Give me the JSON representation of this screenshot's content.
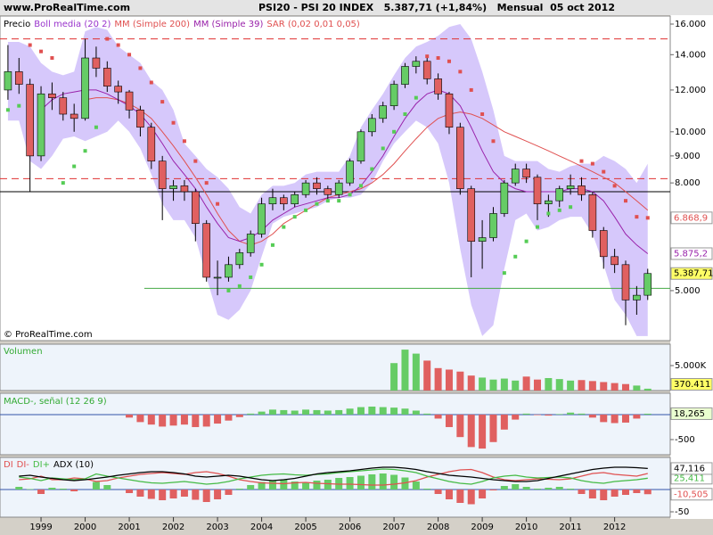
{
  "header": {
    "site": "www.ProRealTime.com",
    "title": "PSI20 - PSI 20 INDEX   5.387,71 (+1,84%)   Mensual  05 oct 2012"
  },
  "chart_data": [
    {
      "type": "candlestick",
      "log_scale": true,
      "price_name": "Precio",
      "copyright": "© ProRealTime.com",
      "xlim": [
        1998.07,
        2013.26
      ],
      "xticks": [
        1999,
        2000,
        2001,
        2002,
        2003,
        2004,
        2005,
        2006,
        2007,
        2008,
        2009,
        2010,
        2011,
        2012
      ],
      "ylim": [
        4020,
        16570
      ],
      "yticks": [
        {
          "value": 5000,
          "label": "5.000"
        },
        {
          "value": 8000,
          "label": "8.000"
        },
        {
          "value": 9000,
          "label": "9.000"
        },
        {
          "value": 10000,
          "label": "10.000"
        },
        {
          "value": 12000,
          "label": "12.000"
        },
        {
          "value": 14000,
          "label": "14.000"
        },
        {
          "value": 16000,
          "label": "16.000"
        }
      ],
      "x": [
        1998.25,
        1998.5,
        1998.75,
        1999,
        1999.25,
        1999.5,
        1999.75,
        2000,
        2000.25,
        2000.5,
        2000.75,
        2001,
        2001.25,
        2001.5,
        2001.75,
        2002,
        2002.25,
        2002.5,
        2002.75,
        2003,
        2003.25,
        2003.5,
        2003.75,
        2004,
        2004.25,
        2004.5,
        2004.75,
        2005,
        2005.25,
        2005.5,
        2005.75,
        2006,
        2006.25,
        2006.5,
        2006.75,
        2007,
        2007.25,
        2007.5,
        2007.75,
        2008,
        2008.25,
        2008.5,
        2008.75,
        2009,
        2009.25,
        2009.5,
        2009.75,
        2010,
        2010.25,
        2010.5,
        2010.75,
        2011,
        2011.25,
        2011.5,
        2011.75,
        2012,
        2012.25,
        2012.5,
        2012.75
      ],
      "open": [
        12000,
        13000,
        12300,
        9000,
        11800,
        11600,
        10800,
        10600,
        13800,
        13200,
        12200,
        11900,
        11000,
        10200,
        8800,
        7800,
        7900,
        7700,
        6700,
        5300,
        5300,
        5600,
        5900,
        6400,
        7300,
        7500,
        7300,
        7600,
        8000,
        7800,
        7600,
        8000,
        8800,
        10000,
        10600,
        11200,
        12300,
        13300,
        13600,
        12600,
        11800,
        10200,
        7800,
        6200,
        6300,
        7000,
        8000,
        8500,
        8200,
        7300,
        7400,
        7800,
        7900,
        7600,
        6500,
        5800,
        5600,
        4800,
        4900
      ],
      "high": [
        14600,
        13800,
        12600,
        12200,
        12400,
        11900,
        11300,
        15000,
        14500,
        13600,
        12500,
        12000,
        11200,
        10400,
        9000,
        8100,
        8100,
        7800,
        6800,
        5700,
        5800,
        6000,
        6500,
        7500,
        7800,
        7600,
        7700,
        8100,
        8200,
        7900,
        8100,
        8900,
        10100,
        10800,
        11400,
        12500,
        13500,
        13900,
        13800,
        12900,
        11900,
        10400,
        7900,
        6800,
        7200,
        8100,
        8700,
        8700,
        8300,
        7600,
        7900,
        8300,
        8200,
        7700,
        6600,
        6000,
        5700,
        5100,
        5500
      ],
      "low": [
        11500,
        11800,
        7700,
        8800,
        11000,
        10500,
        10000,
        10500,
        12700,
        11900,
        11300,
        10600,
        9800,
        8500,
        6800,
        7400,
        7400,
        6200,
        5200,
        4900,
        5200,
        5500,
        5800,
        6300,
        7100,
        7100,
        7200,
        7500,
        7600,
        7400,
        7500,
        7900,
        8700,
        9800,
        10400,
        11000,
        12100,
        12900,
        12300,
        11500,
        9900,
        7600,
        5300,
        5500,
        6200,
        6900,
        7900,
        8000,
        6800,
        6900,
        7200,
        7600,
        7400,
        6300,
        5500,
        5400,
        4300,
        4500,
        4800
      ],
      "close": [
        13000,
        12300,
        9000,
        11800,
        11600,
        10800,
        10600,
        13800,
        13200,
        12200,
        11900,
        11000,
        10200,
        8800,
        7800,
        7900,
        7700,
        6700,
        5300,
        5300,
        5600,
        5900,
        6400,
        7300,
        7500,
        7300,
        7600,
        8000,
        7800,
        7600,
        8000,
        8800,
        10000,
        10600,
        11200,
        12300,
        13300,
        13600,
        12600,
        11800,
        10200,
        7800,
        6200,
        6300,
        7000,
        8000,
        8500,
        8200,
        7300,
        7400,
        7800,
        7900,
        7600,
        6500,
        5800,
        5600,
        4800,
        4900,
        5387.71
      ],
      "last_label": "5.387,71",
      "last_label_background": "#ffff66",
      "up_color": "#66cc66",
      "down_color": "#e06060",
      "series": [
        {
          "name": "Boll media (20 2)",
          "color": "#9933cc",
          "fill": "#d6c8fb",
          "upper": [
            14800,
            14800,
            14500,
            13500,
            13000,
            12800,
            13000,
            15500,
            15800,
            15600,
            14500,
            14000,
            13500,
            12500,
            12000,
            11000,
            9500,
            9000,
            8500,
            8200,
            7800,
            7200,
            7000,
            7600,
            7900,
            7900,
            8000,
            8300,
            8400,
            8400,
            8400,
            9000,
            10200,
            11000,
            11800,
            12800,
            13800,
            14500,
            14800,
            15200,
            15800,
            16000,
            15000,
            13000,
            11000,
            9000,
            8800,
            8800,
            8800,
            8500,
            8400,
            8600,
            8700,
            8700,
            9000,
            8800,
            8500,
            8000,
            8700
          ],
          "lower": [
            10500,
            10500,
            8800,
            8500,
            9000,
            9700,
            9800,
            9600,
            9800,
            10000,
            10500,
            10000,
            9300,
            8300,
            7300,
            6800,
            6800,
            6300,
            5300,
            4500,
            4400,
            4600,
            5000,
            5800,
            6700,
            6900,
            7000,
            7100,
            7200,
            7400,
            7500,
            7500,
            7600,
            8000,
            8800,
            9500,
            10000,
            10500,
            10200,
            9500,
            8000,
            6000,
            4700,
            4100,
            4300,
            5500,
            6800,
            7000,
            6500,
            6600,
            6800,
            6900,
            6900,
            6400,
            5600,
            4800,
            4500,
            4100,
            4100
          ]
        },
        {
          "name": "MM (Simple 200)",
          "color": "#e05050",
          "style": "line",
          "values": [
            null,
            null,
            null,
            null,
            null,
            null,
            null,
            11500,
            11600,
            11600,
            11500,
            11300,
            11000,
            10600,
            10000,
            9400,
            8800,
            8200,
            7600,
            7000,
            6500,
            6200,
            6100,
            6200,
            6400,
            6700,
            6900,
            7100,
            7300,
            7500,
            7600,
            7700,
            7800,
            8000,
            8300,
            8700,
            9200,
            9700,
            10200,
            10600,
            10800,
            10900,
            10800,
            10600,
            10300,
            10000,
            9800,
            9600,
            9400,
            9200,
            9000,
            8800,
            8600,
            8400,
            8200,
            8000,
            7700,
            7400,
            7100
          ]
        },
        {
          "name": "MM (Simple 39)",
          "color": "#9922aa",
          "style": "line",
          "last_label": "5.875,2",
          "values": [
            null,
            null,
            null,
            11000,
            11500,
            11800,
            11900,
            12000,
            12000,
            11800,
            11500,
            11200,
            10800,
            10200,
            9500,
            8800,
            8300,
            7800,
            7200,
            6700,
            6300,
            6200,
            6300,
            6500,
            6800,
            7000,
            7200,
            7300,
            7400,
            7500,
            7500,
            7600,
            7900,
            8400,
            9000,
            9800,
            10600,
            11300,
            11800,
            12000,
            11800,
            11200,
            10200,
            9200,
            8400,
            8000,
            7800,
            7700,
            7700,
            7700,
            7700,
            7800,
            7800,
            7700,
            7400,
            6900,
            6400,
            6100,
            5875.2
          ]
        },
        {
          "name": "SAR (0,02 0,01 0,05)",
          "color": "#e05050",
          "below_color": "#55cc55",
          "style": "dots",
          "last_label": "6.868,9",
          "values": [
            11000,
            11200,
            14600,
            14200,
            13800,
            8000,
            8600,
            9200,
            10200,
            15000,
            14600,
            14000,
            13200,
            12400,
            11400,
            10400,
            9600,
            8800,
            8000,
            7300,
            5000,
            5100,
            5300,
            5600,
            6100,
            6600,
            6900,
            7100,
            7300,
            7400,
            7400,
            7600,
            7900,
            8500,
            9300,
            10000,
            10800,
            11600,
            13900,
            13800,
            13600,
            13000,
            12000,
            10800,
            9600,
            5400,
            5800,
            6200,
            6600,
            7000,
            7100,
            7200,
            8800,
            8700,
            8400,
            7900,
            7400,
            6900,
            6868.9
          ]
        }
      ],
      "hlines": [
        {
          "value": 15000,
          "color": "#e03030",
          "dashed": true
        },
        {
          "value": 8150,
          "color": "#e03030",
          "dashed": true
        },
        {
          "value": 7700,
          "color": "#000000"
        },
        {
          "value": 5050,
          "color": "#44aa44",
          "from": 2001.34
        }
      ]
    },
    {
      "type": "volume",
      "title": "Volumen",
      "title_color": "#33aa33",
      "up_color": "#66cc66",
      "down_color": "#e06060",
      "ylim": [
        0,
        9290000
      ],
      "yticks": [
        {
          "value": 5000000,
          "label": "5.000K"
        }
      ],
      "values": [
        null,
        null,
        null,
        null,
        null,
        null,
        null,
        null,
        null,
        null,
        null,
        null,
        null,
        null,
        null,
        null,
        null,
        null,
        null,
        null,
        null,
        null,
        null,
        null,
        null,
        null,
        null,
        null,
        null,
        null,
        null,
        null,
        null,
        null,
        null,
        5500000,
        8200000,
        7400000,
        6000000,
        4500000,
        4200000,
        3800000,
        3000000,
        2600000,
        2200000,
        2400000,
        2000000,
        2800000,
        2200000,
        2500000,
        2300000,
        2000000,
        2100000,
        1900000,
        1700000,
        1500000,
        1300000,
        1000000,
        370411
      ],
      "last_label": "370.411",
      "last_label_background": "#ffff66"
    },
    {
      "type": "bar",
      "title": "MACD-, señal (12 26 9)",
      "title_color": "#33aa33",
      "up_color": "#66cc66",
      "down_color": "#e06060",
      "ylim": [
        -804,
        428
      ],
      "yticks": [
        -500
      ],
      "values": [
        null,
        null,
        null,
        null,
        null,
        null,
        null,
        null,
        null,
        null,
        null,
        -60,
        -150,
        -200,
        -240,
        -220,
        -200,
        -250,
        -240,
        -180,
        -120,
        -50,
        20,
        60,
        100,
        90,
        80,
        100,
        90,
        80,
        90,
        120,
        150,
        160,
        150,
        140,
        120,
        80,
        20,
        -80,
        -250,
        -450,
        -650,
        -680,
        -550,
        -300,
        -100,
        20,
        -10,
        -20,
        10,
        40,
        20,
        -60,
        -150,
        -170,
        -160,
        -80,
        18.265
      ],
      "last_label": "18,265",
      "last_label_background": "#eaffd0"
    },
    {
      "type": "line",
      "ylim": [
        -62,
        72
      ],
      "yticks": [
        -50
      ],
      "series": [
        {
          "name": "DI",
          "color": "#e05050",
          "style": "bar",
          "up_color": "#66cc66",
          "down_color": "#e06060",
          "last_label": "-10,505",
          "values": [
            null,
            6,
            1,
            -10,
            4,
            2,
            -4,
            0,
            17,
            10,
            0,
            -8,
            -16,
            -21,
            -24,
            -20,
            -16,
            -23,
            -28,
            -22,
            -12,
            2,
            10,
            17,
            20,
            22,
            18,
            16,
            20,
            22,
            26,
            28,
            31,
            34,
            36,
            33,
            27,
            18,
            2,
            -10,
            -22,
            -30,
            -33,
            -20,
            -2,
            8,
            12,
            6,
            2,
            4,
            6,
            2,
            -10,
            -20,
            -24,
            -16,
            -12,
            -8,
            -10.505
          ]
        },
        {
          "name": "DI-",
          "color": "#e05050",
          "style": "line",
          "values": [
            null,
            22,
            24,
            30,
            22,
            22,
            26,
            24,
            18,
            20,
            26,
            30,
            34,
            36,
            38,
            36,
            34,
            38,
            40,
            36,
            30,
            22,
            18,
            15,
            14,
            13,
            15,
            16,
            14,
            13,
            12,
            12,
            11,
            10,
            10,
            12,
            15,
            20,
            28,
            34,
            40,
            44,
            45,
            38,
            28,
            22,
            20,
            22,
            24,
            23,
            22,
            24,
            30,
            36,
            38,
            34,
            32,
            30,
            35.916
          ]
        },
        {
          "name": "DI+",
          "color": "#44bb44",
          "style": "line",
          "last_label": "25,411",
          "values": [
            null,
            28,
            25,
            20,
            26,
            24,
            22,
            24,
            35,
            30,
            26,
            22,
            18,
            15,
            14,
            16,
            18,
            15,
            12,
            14,
            18,
            24,
            28,
            32,
            34,
            35,
            33,
            32,
            34,
            35,
            38,
            40,
            42,
            44,
            46,
            45,
            42,
            38,
            30,
            24,
            18,
            14,
            12,
            18,
            26,
            30,
            32,
            28,
            26,
            27,
            28,
            26,
            20,
            16,
            14,
            18,
            20,
            22,
            25.411
          ]
        },
        {
          "name": "ADX (10)",
          "color": "#000000",
          "style": "line",
          "last_label": "47,116",
          "values": [
            null,
            30,
            32,
            28,
            25,
            22,
            20,
            22,
            25,
            28,
            32,
            35,
            38,
            40,
            40,
            38,
            35,
            30,
            28,
            30,
            32,
            30,
            26,
            22,
            20,
            22,
            25,
            30,
            35,
            38,
            40,
            42,
            45,
            48,
            50,
            50,
            48,
            45,
            40,
            36,
            32,
            30,
            28,
            25,
            22,
            20,
            18,
            18,
            20,
            25,
            30,
            35,
            40,
            45,
            48,
            50,
            50,
            49,
            47.116
          ]
        }
      ]
    }
  ]
}
